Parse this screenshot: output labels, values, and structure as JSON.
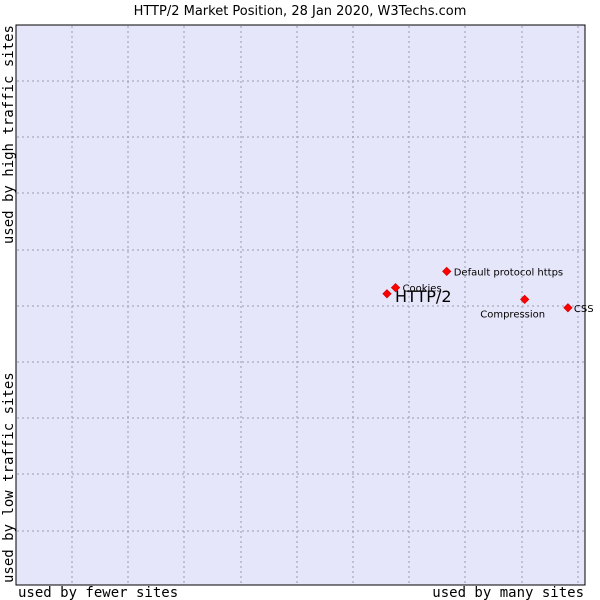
{
  "title": "HTTP/2 Market Position, 28 Jan 2020, W3Techs.com",
  "chart_data": {
    "type": "scatter",
    "title": "HTTP/2 Market Position, 28 Jan 2020, W3Techs.com",
    "x_axis": {
      "low_label": "used by fewer sites",
      "high_label": "used by many sites",
      "range": [
        0,
        100
      ]
    },
    "y_axis": {
      "low_label": "used by low traffic sites",
      "high_label": "used by high traffic sites",
      "range": [
        0,
        100
      ]
    },
    "grid": true,
    "background_color": "#e6e6fa",
    "point_color": "#ff0000",
    "points": [
      {
        "label": "HTTP/2",
        "x": 65.2,
        "y": 52.0,
        "highlight": true
      },
      {
        "label": "Cookies",
        "x": 66.7,
        "y": 53.1,
        "highlight": false
      },
      {
        "label": "Default protocol https",
        "x": 75.7,
        "y": 56.0,
        "highlight": false
      },
      {
        "label": "Compression",
        "x": 89.4,
        "y": 51.0,
        "highlight": false
      },
      {
        "label": "CSS",
        "x": 97.0,
        "y": 49.5,
        "highlight": false
      }
    ]
  }
}
